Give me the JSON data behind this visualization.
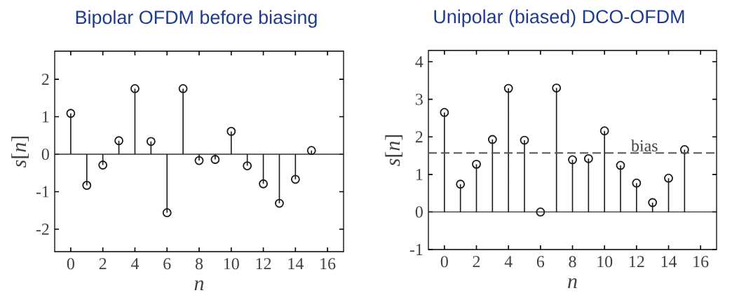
{
  "chart_data": [
    {
      "type": "lollipop",
      "title": "Bipolar OFDM before biasing",
      "xlabel": "n",
      "ylabel": "*s*[*n*]",
      "color": "#1a1a1a",
      "marker": "circle",
      "x": [
        0,
        1,
        2,
        3,
        4,
        5,
        6,
        7,
        8,
        9,
        10,
        11,
        12,
        13,
        14,
        15
      ],
      "values": [
        1.09,
        -0.83,
        -0.29,
        0.36,
        1.75,
        0.34,
        -1.56,
        1.75,
        -0.17,
        -0.14,
        0.61,
        -0.31,
        -0.79,
        -1.31,
        -0.67,
        0.1
      ],
      "xlim": [
        -1,
        17
      ],
      "ylim": [
        -2.6,
        2.75
      ],
      "xticks": [
        0,
        2,
        4,
        6,
        8,
        10,
        12,
        14,
        16
      ],
      "yticks": [
        -2,
        -1,
        0,
        1,
        2
      ]
    },
    {
      "type": "lollipop",
      "title": "Unipolar (biased) DCO-OFDM",
      "xlabel": "n",
      "ylabel": "*s*[*n*]",
      "color": "#1a1a1a",
      "marker": "circle",
      "x": [
        0,
        1,
        2,
        3,
        4,
        5,
        6,
        7,
        8,
        9,
        10,
        11,
        12,
        13,
        14,
        15
      ],
      "values": [
        2.65,
        0.74,
        1.27,
        1.93,
        3.29,
        1.91,
        0,
        3.3,
        1.39,
        1.42,
        2.16,
        1.24,
        0.77,
        0.25,
        0.9,
        1.66
      ],
      "xlim": [
        -1,
        17
      ],
      "ylim": [
        -1,
        4.3
      ],
      "xticks": [
        0,
        2,
        4,
        6,
        8,
        10,
        12,
        14,
        16
      ],
      "yticks": [
        -1,
        0,
        1,
        2,
        3,
        4
      ],
      "ref_lines": [
        {
          "axis": "y",
          "value": 1.57,
          "label": "bias",
          "color": "#555555",
          "line_style": "dashed"
        }
      ]
    }
  ]
}
